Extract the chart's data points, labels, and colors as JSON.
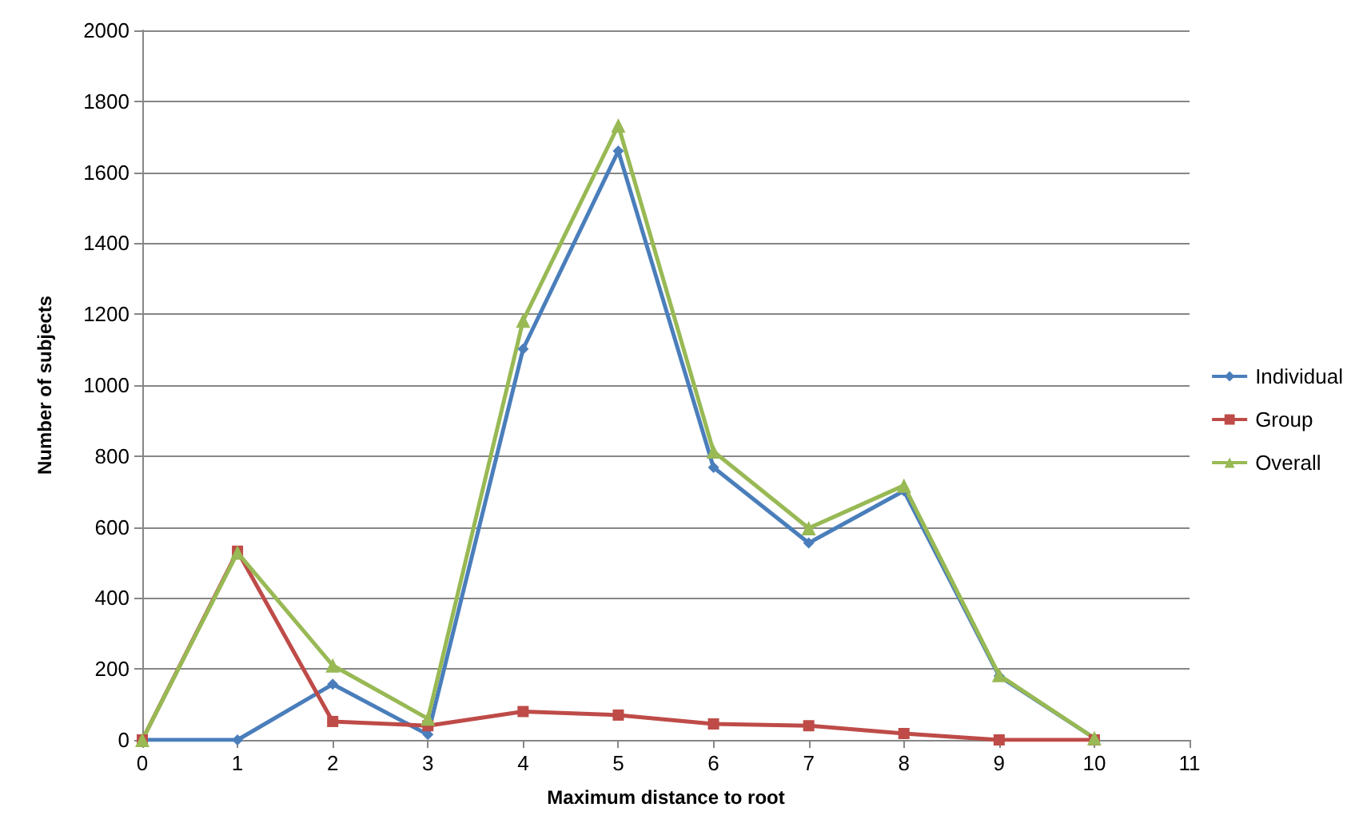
{
  "chart_data": {
    "type": "line",
    "xlabel": "Maximum distance to root",
    "ylabel": "Number of subjects",
    "x": [
      0,
      1,
      2,
      3,
      4,
      5,
      6,
      7,
      8,
      9,
      10
    ],
    "series": [
      {
        "name": "Individual",
        "color": "#4a7ebb",
        "marker": "diamond",
        "values": [
          0,
          0,
          157,
          15,
          1102,
          1660,
          768,
          555,
          702,
          180,
          5
        ]
      },
      {
        "name": "Group",
        "color": "#be4b48",
        "marker": "square",
        "values": [
          0,
          532,
          52,
          40,
          80,
          70,
          45,
          40,
          18,
          0,
          0
        ]
      },
      {
        "name": "Overall",
        "color": "#98b954",
        "marker": "triangle",
        "values": [
          0,
          528,
          210,
          60,
          1182,
          1732,
          813,
          597,
          717,
          183,
          5
        ]
      }
    ],
    "xlim": [
      0,
      11
    ],
    "xticks": [
      0,
      1,
      2,
      3,
      4,
      5,
      6,
      7,
      8,
      9,
      10,
      11
    ],
    "ylim": [
      0,
      2000
    ],
    "yticks": [
      0,
      200,
      400,
      600,
      800,
      1000,
      1200,
      1400,
      1600,
      1800,
      2000
    ],
    "grid": "y",
    "legend": "right"
  }
}
